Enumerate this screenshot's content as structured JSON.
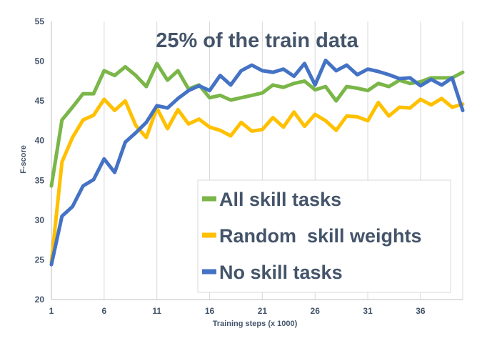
{
  "chart_data": {
    "type": "line",
    "title": "25% of the train data",
    "xlabel": "Training steps (x 1000)",
    "ylabel": "F-score",
    "xlim": [
      1,
      40
    ],
    "ylim": [
      20,
      55
    ],
    "x_ticks": [
      "1",
      "6",
      "11",
      "16",
      "21",
      "26",
      "31",
      "36"
    ],
    "y_ticks": [
      "20",
      "25",
      "30",
      "35",
      "40",
      "45",
      "50",
      "55"
    ],
    "grid": "vertical",
    "legend_position": "bottom-right",
    "x": [
      1,
      2,
      3,
      4,
      5,
      6,
      7,
      8,
      9,
      10,
      11,
      12,
      13,
      14,
      15,
      16,
      17,
      18,
      19,
      20,
      21,
      22,
      23,
      24,
      25,
      26,
      27,
      28,
      29,
      30,
      31,
      32,
      33,
      34,
      35,
      36,
      37,
      38,
      39,
      40
    ],
    "series": [
      {
        "name": "All skill tasks",
        "color": "#7ab648",
        "values": [
          34.3,
          42.6,
          44.2,
          45.9,
          45.9,
          48.8,
          48.2,
          49.3,
          48.2,
          46.8,
          49.7,
          47.6,
          48.8,
          46.5,
          47.0,
          45.4,
          45.7,
          45.1,
          45.4,
          45.7,
          46.0,
          47.0,
          46.7,
          47.2,
          47.5,
          46.4,
          46.8,
          45.0,
          46.8,
          46.6,
          46.3,
          47.2,
          46.8,
          47.6,
          47.2,
          47.4,
          47.9,
          47.9,
          47.9,
          48.6
        ]
      },
      {
        "name": "Random  skill weights",
        "color": "#ffc000",
        "values": [
          24.7,
          37.3,
          40.4,
          42.6,
          43.2,
          45.2,
          43.8,
          45.0,
          41.9,
          40.4,
          44.1,
          41.5,
          43.9,
          42.1,
          42.7,
          41.7,
          41.3,
          40.6,
          42.3,
          41.2,
          41.4,
          42.9,
          41.7,
          43.6,
          41.8,
          43.3,
          42.5,
          41.3,
          43.1,
          43.0,
          42.5,
          44.8,
          43.1,
          44.2,
          44.1,
          45.2,
          44.5,
          45.3,
          44.2,
          44.6
        ]
      },
      {
        "name": "No skill tasks",
        "color": "#4472c4",
        "values": [
          24.4,
          30.5,
          31.7,
          34.3,
          35.1,
          37.7,
          36.0,
          39.8,
          41.0,
          42.3,
          44.4,
          44.1,
          45.3,
          46.3,
          46.9,
          46.3,
          48.2,
          47.0,
          48.8,
          49.5,
          48.8,
          48.6,
          49.0,
          48.1,
          49.7,
          47.0,
          50.1,
          48.8,
          49.5,
          48.3,
          49.0,
          48.7,
          48.3,
          47.8,
          47.9,
          46.9,
          47.7,
          47.0,
          47.9,
          43.8
        ]
      }
    ]
  }
}
